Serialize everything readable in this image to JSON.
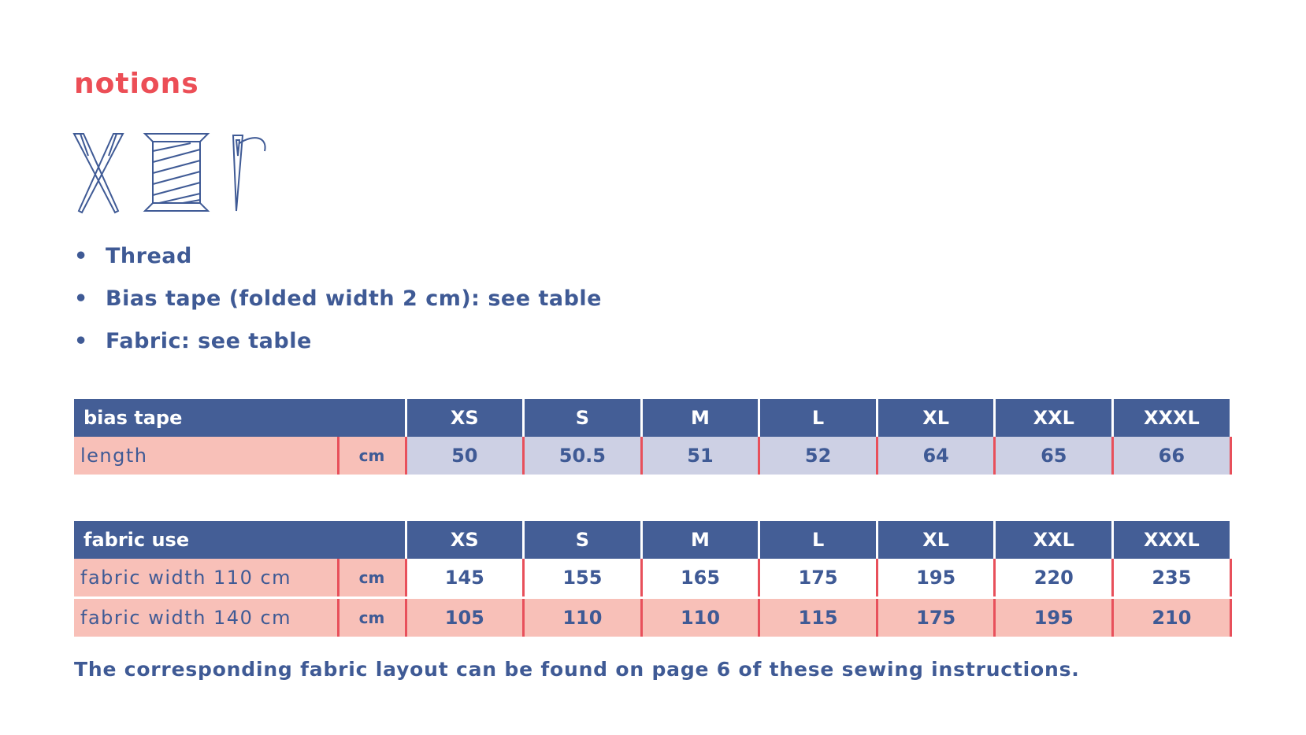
{
  "header": {
    "title": "notions"
  },
  "bullets": [
    "Thread",
    "Bias tape (folded width 2 cm): see table",
    "Fabric: see table"
  ],
  "tables": [
    {
      "title": "bias tape",
      "sizes": [
        "XS",
        "S",
        "M",
        "L",
        "XL",
        "XXL",
        "XXXL"
      ],
      "rows": [
        {
          "label": "length",
          "unit": "cm",
          "values": [
            "50",
            "50.5",
            "51",
            "52",
            "64",
            "65",
            "66"
          ]
        }
      ]
    },
    {
      "title": "fabric use",
      "sizes": [
        "XS",
        "S",
        "M",
        "L",
        "XL",
        "XXL",
        "XXXL"
      ],
      "rows": [
        {
          "label": "fabric width 110 cm",
          "unit": "cm",
          "values": [
            "145",
            "155",
            "165",
            "175",
            "195",
            "220",
            "235"
          ]
        },
        {
          "label": "fabric width 140 cm",
          "unit": "cm",
          "values": [
            "105",
            "110",
            "110",
            "115",
            "175",
            "195",
            "210"
          ]
        }
      ]
    }
  ],
  "footnote": "The corresponding fabric layout can be found on page 6 of these sewing instructions."
}
